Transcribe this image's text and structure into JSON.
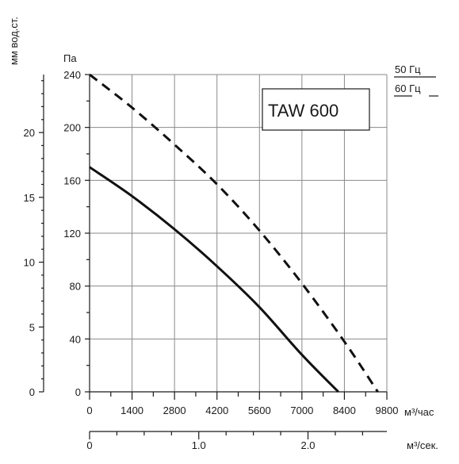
{
  "chart_data": {
    "type": "line",
    "title": "TAW 600",
    "x_axis": {
      "label": "м³/час",
      "ticks": [
        0,
        1400,
        2800,
        4200,
        5600,
        7000,
        8400,
        9800
      ],
      "range": [
        0,
        9800
      ]
    },
    "x2_axis": {
      "label": "м³/сек.",
      "ticks": [
        0,
        1.0,
        2.0
      ],
      "tick_labels": [
        "0",
        "1.0",
        "2.0"
      ]
    },
    "y_axis": {
      "label": "Па",
      "ticks": [
        0,
        40,
        80,
        120,
        160,
        200,
        240
      ],
      "range": [
        0,
        240
      ]
    },
    "y2_axis": {
      "label": "мм вод.ст.",
      "ticks": [
        0,
        5,
        10,
        15,
        20
      ]
    },
    "grid": true,
    "legend": {
      "placement": "top-right",
      "entries": [
        {
          "label": "50 Гц",
          "style": "solid"
        },
        {
          "label": "60 Гц",
          "style": "dashed"
        }
      ]
    },
    "series": [
      {
        "name": "50 Гц",
        "style": "solid",
        "x": [
          0,
          1400,
          2800,
          4200,
          5600,
          7000,
          8200
        ],
        "y": [
          170,
          148,
          123,
          95,
          64,
          28,
          0
        ]
      },
      {
        "name": "60 Гц",
        "style": "dashed",
        "x": [
          0,
          1400,
          2800,
          4200,
          5600,
          7000,
          8400,
          9500
        ],
        "y": [
          240,
          215,
          187,
          157,
          122,
          82,
          38,
          0
        ]
      }
    ]
  }
}
